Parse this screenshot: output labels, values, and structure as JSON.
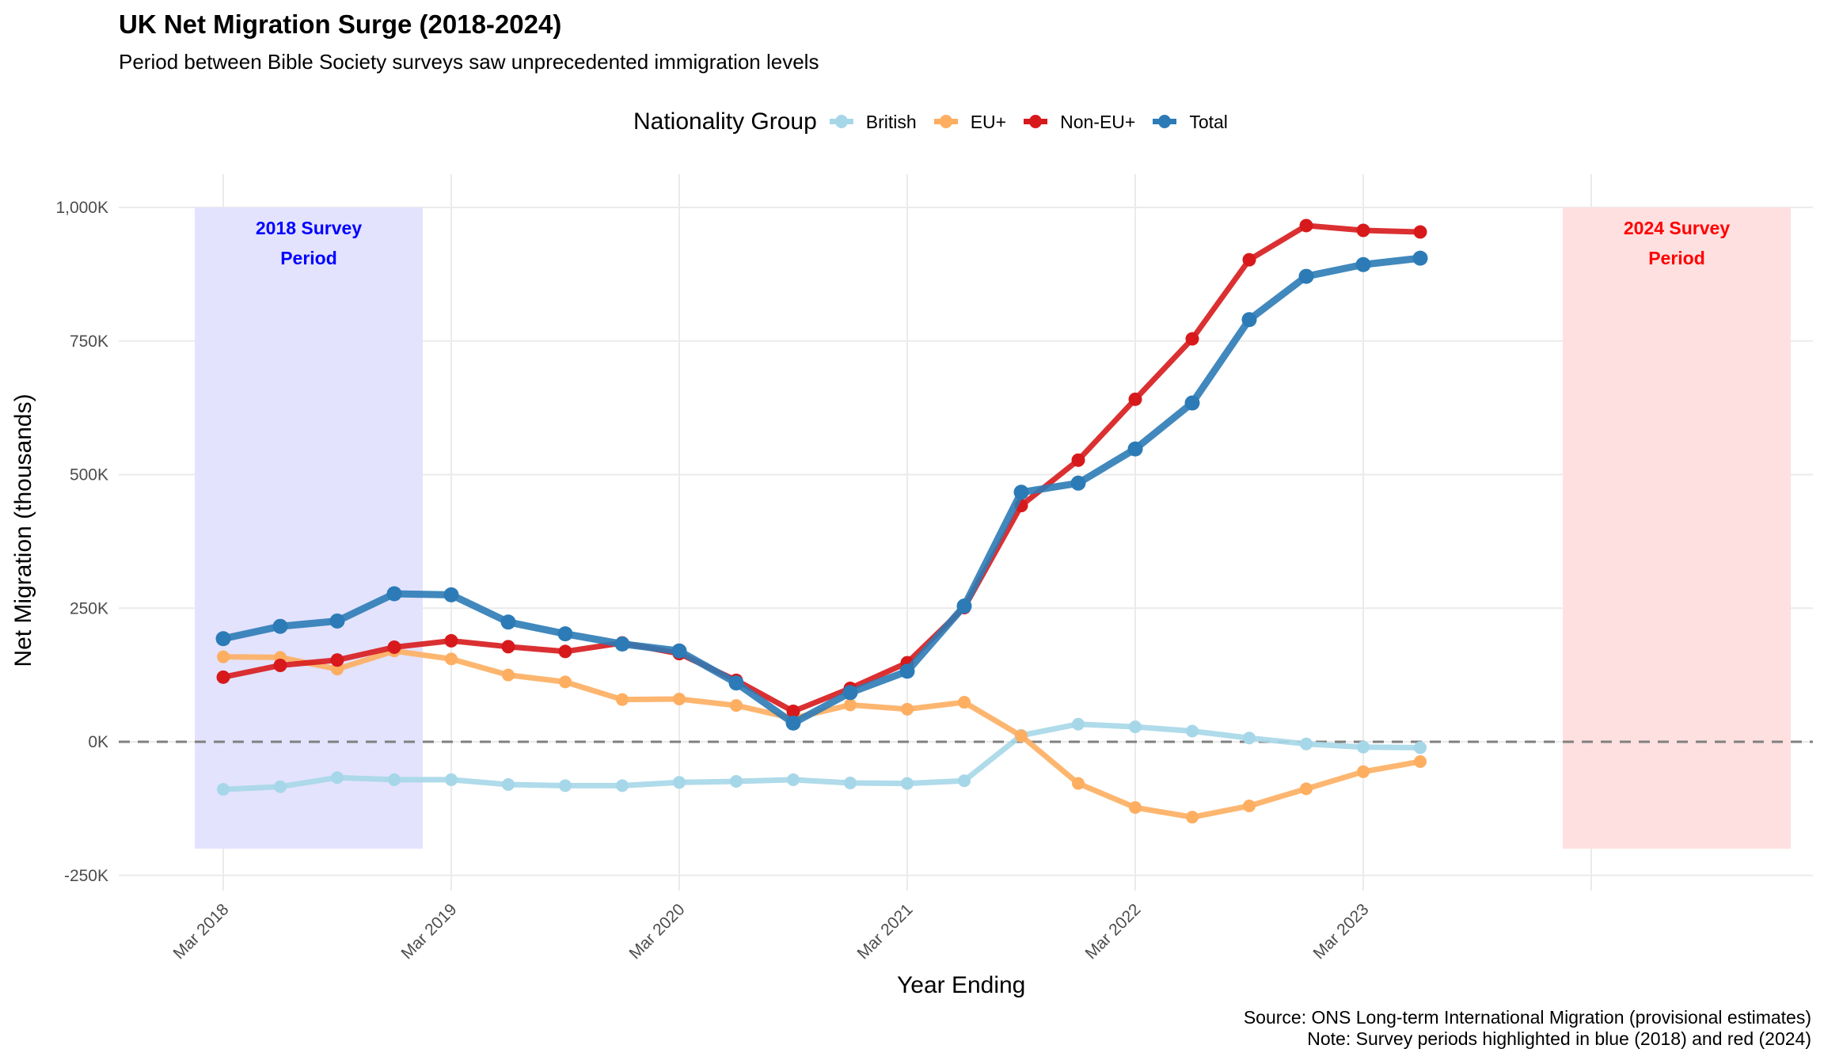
{
  "chart_data": {
    "type": "line",
    "title": "UK Net Migration Surge (2018-2024)",
    "subtitle": "Period between Bible Society surveys saw unprecedented immigration levels",
    "xlabel": "Year Ending",
    "ylabel": "Net Migration (thousands)",
    "caption_lines": [
      "Source: ONS Long-term International Migration (provisional estimates)",
      "Note: Survey periods highlighted in blue (2018) and red (2024)"
    ],
    "legend": {
      "title": "Nationality Group",
      "position": "top"
    },
    "x": [
      "Mar 2018",
      "Jun 2018",
      "Sep 2018",
      "Dec 2018",
      "Mar 2019",
      "Jun 2019",
      "Sep 2019",
      "Dec 2019",
      "Mar 2020",
      "Jun 2020",
      "Sep 2020",
      "Dec 2020",
      "Mar 2021",
      "Jun 2021",
      "Sep 2021",
      "Dec 2021",
      "Mar 2022",
      "Jun 2022",
      "Sep 2022",
      "Dec 2022",
      "Mar 2023",
      "Jun 2023"
    ],
    "x_ticks": [
      "Mar 2018",
      "Mar 2019",
      "Mar 2020",
      "Mar 2021",
      "Mar 2022",
      "Mar 2023"
    ],
    "x_range_years": [
      2017.8,
      2025.5
    ],
    "y_ticks": [
      -250,
      0,
      250,
      500,
      750,
      1000
    ],
    "y_tick_labels": [
      "-250K",
      "0K",
      "250K",
      "500K",
      "750K",
      "1,000K"
    ],
    "ylim": [
      -280,
      1060
    ],
    "grid": true,
    "reference_line": {
      "y": 0,
      "style": "dashed",
      "color": "#808080"
    },
    "series": [
      {
        "name": "British",
        "color": "#A6D7E8",
        "values": [
          -89,
          -84,
          -67,
          -71,
          -71,
          -80,
          -82,
          -82,
          -76,
          -74,
          -71,
          -77,
          -78,
          -73,
          12,
          33,
          28,
          20,
          7,
          -4,
          -10,
          -11
        ]
      },
      {
        "name": "EU+",
        "color": "#FDAE61",
        "values": [
          159,
          158,
          136,
          170,
          155,
          125,
          112,
          79,
          80,
          68,
          44,
          69,
          61,
          74,
          11,
          -78,
          -123,
          -141,
          -120,
          -88,
          -56,
          -37
        ]
      },
      {
        "name": "Non-EU+",
        "color": "#D7191C",
        "values": [
          121,
          143,
          153,
          177,
          189,
          178,
          169,
          185,
          165,
          115,
          57,
          100,
          148,
          251,
          442,
          527,
          641,
          754,
          902,
          966,
          957,
          954
        ]
      },
      {
        "name": "Total",
        "color": "#2C7BB6",
        "values": [
          193,
          216,
          226,
          277,
          275,
          224,
          202,
          183,
          170,
          110,
          35,
          92,
          132,
          254,
          467,
          484,
          548,
          634,
          790,
          871,
          893,
          905
        ]
      }
    ],
    "annotations": [
      {
        "label_lines": [
          "2018 Survey",
          "Period"
        ],
        "x_start": "Dec 2017",
        "x_end": "Dec 2018",
        "y_range": [
          -200,
          1000
        ],
        "fill": "#E3E3FE",
        "text_color": "#0000FF"
      },
      {
        "label_lines": [
          "2024 Survey",
          "Period"
        ],
        "x_start": "Dec 2023",
        "x_end": "Dec 2024",
        "y_range": [
          -200,
          1000
        ],
        "fill": "#FFE0E0",
        "text_color": "#FF0000"
      }
    ]
  }
}
